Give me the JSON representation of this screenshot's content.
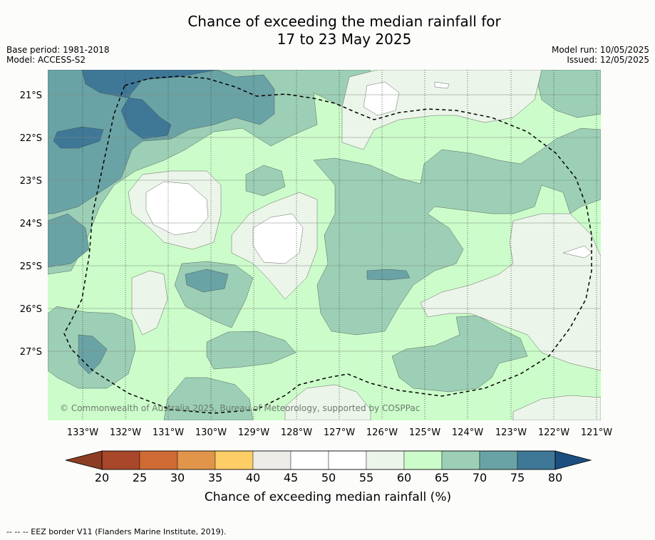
{
  "title_line1": "Chance of exceeding the median rainfall for",
  "title_line2": "17 to 23 May 2025",
  "base_period": "Base period: 1981-2018",
  "model": "Model: ACCESS-S2",
  "model_run": "Model run: 10/05/2025",
  "issued": "Issued: 12/05/2025",
  "copyright": "© Commonwealth of Australia 2025, Bureau of Meteorology, supported by COSPPac",
  "lat_labels": [
    "21°S",
    "22°S",
    "23°S",
    "24°S",
    "25°S",
    "26°S",
    "27°S"
  ],
  "lon_labels": [
    "133°W",
    "132°W",
    "131°W",
    "130°W",
    "129°W",
    "128°W",
    "127°W",
    "126°W",
    "125°W",
    "124°W",
    "123°W",
    "122°W",
    "121°W"
  ],
  "colorbar": {
    "label": "Chance of exceeding median rainfall (%)",
    "ticks": [
      "20",
      "25",
      "30",
      "35",
      "40",
      "45",
      "50",
      "55",
      "60",
      "65",
      "70",
      "75",
      "80"
    ],
    "colors": [
      "#a8472a",
      "#cf6a34",
      "#e0954a",
      "#fdcd66",
      "#ecebe8",
      "#ffffff",
      "#ffffff",
      "#ecf5ea",
      "#ccfcca",
      "#9ccfb6",
      "#6aa3a6",
      "#3f7897"
    ],
    "under_color": "#8d3d24",
    "over_color": "#1c4f7f"
  },
  "footnote": "-- -- -- EEZ border V11 (Flanders Marine Institute, 2019)."
}
